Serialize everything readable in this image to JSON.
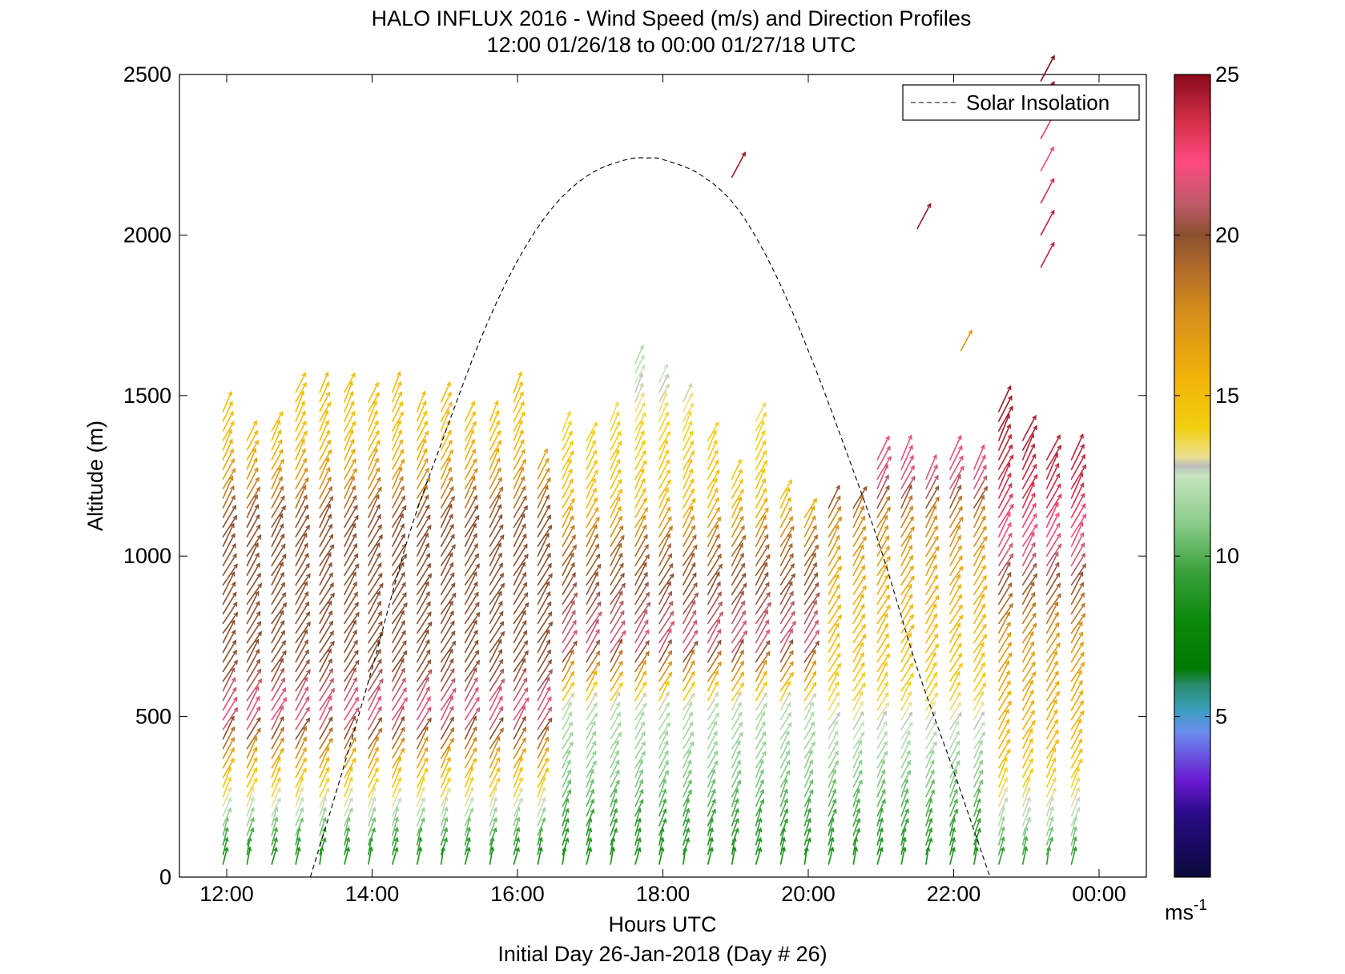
{
  "chart_data": {
    "type": "scatter",
    "title": "HALO INFLUX 2016 - Wind Speed (m/s) and Direction Profiles",
    "subtitle": "12:00 01/26/18 to 00:00 01/27/18  UTC",
    "xlabel": "Hours UTC",
    "xlabel2": "Initial Day 26-Jan-2018 (Day # 26)",
    "ylabel": "Altitude (m)",
    "xlim": [
      11.35,
      24.65
    ],
    "ylim": [
      0,
      2500
    ],
    "x_ticks": [
      12,
      14,
      16,
      18,
      20,
      22,
      24
    ],
    "x_tick_labels": [
      "12:00",
      "14:00",
      "16:00",
      "18:00",
      "20:00",
      "22:00",
      "00:00"
    ],
    "y_ticks": [
      0,
      500,
      1000,
      1500,
      2000,
      2500
    ],
    "y_tick_labels": [
      "0",
      "500",
      "1000",
      "1500",
      "2000",
      "2500"
    ],
    "legend": {
      "entries": [
        "Solar Insolation"
      ],
      "placement": "top-right",
      "line_style": "dashed"
    },
    "solar_insolation": {
      "x": [
        13.15,
        13.5,
        14.0,
        14.5,
        15.0,
        15.5,
        16.0,
        16.5,
        17.0,
        17.5,
        17.8,
        18.0,
        18.5,
        19.0,
        19.5,
        20.0,
        20.5,
        21.0,
        21.5,
        22.0,
        22.5
      ],
      "y": [
        0,
        260,
        650,
        1060,
        1380,
        1680,
        1920,
        2090,
        2190,
        2235,
        2240,
        2235,
        2190,
        2090,
        1900,
        1640,
        1340,
        1020,
        650,
        330,
        0
      ]
    },
    "colorbar": {
      "label": "ms-1",
      "label_main": "ms",
      "label_sup": "-1",
      "min": 0,
      "max": 25,
      "ticks": [
        5,
        10,
        15,
        20,
        25
      ],
      "tick_labels": [
        "5",
        "10",
        "15",
        "20",
        "25"
      ],
      "stops": [
        {
          "v": 0,
          "c": "#0a0a3a"
        },
        {
          "v": 2,
          "c": "#2a0a8a"
        },
        {
          "v": 3,
          "c": "#6a1ad0"
        },
        {
          "v": 4.5,
          "c": "#6a8aee"
        },
        {
          "v": 5.2,
          "c": "#3aa0c0"
        },
        {
          "v": 6,
          "c": "#2a8a6a"
        },
        {
          "v": 6.5,
          "c": "#007a00"
        },
        {
          "v": 8,
          "c": "#0a8a0a"
        },
        {
          "v": 9.5,
          "c": "#3aa03a"
        },
        {
          "v": 11,
          "c": "#8acc8a"
        },
        {
          "v": 12.5,
          "c": "#c6e4c0"
        },
        {
          "v": 12.8,
          "c": "#bdbdbd"
        },
        {
          "v": 13.1,
          "c": "#ece090"
        },
        {
          "v": 14,
          "c": "#f2cf10"
        },
        {
          "v": 15.5,
          "c": "#f2b40a"
        },
        {
          "v": 17.5,
          "c": "#d6901a"
        },
        {
          "v": 19,
          "c": "#b06a2a"
        },
        {
          "v": 20,
          "c": "#8a5030"
        },
        {
          "v": 21,
          "c": "#c05a6a"
        },
        {
          "v": 22.3,
          "c": "#ff4a80"
        },
        {
          "v": 23.5,
          "c": "#d6304a"
        },
        {
          "v": 25,
          "c": "#8a0a1a"
        }
      ]
    },
    "profile_times": [
      11.95,
      12.28,
      12.62,
      12.95,
      13.28,
      13.62,
      13.95,
      14.28,
      14.62,
      14.95,
      15.28,
      15.62,
      15.95,
      16.28,
      16.62,
      16.95,
      17.28,
      17.62,
      17.95,
      18.28,
      18.62,
      18.95,
      19.28,
      19.62,
      19.95,
      20.28,
      20.62,
      20.95,
      21.28,
      21.62,
      21.95,
      22.28,
      22.62,
      22.95,
      23.28,
      23.62
    ],
    "profile_tops": [
      1470,
      1360,
      1400,
      1520,
      1520,
      1520,
      1500,
      1520,
      1460,
      1500,
      1440,
      1420,
      1520,
      1280,
      1400,
      1360,
      1420,
      1620,
      1560,
      1500,
      1360,
      1260,
      1440,
      1180,
      1140,
      1160,
      1160,
      1300,
      1300,
      1260,
      1300,
      1280,
      1460,
      1360,
      1300,
      1320
    ],
    "speed_profiles": [
      {
        "x0": 11.95,
        "x1": 16.5,
        "points": [
          [
            0,
            8
          ],
          [
            80,
            9
          ],
          [
            180,
            12
          ],
          [
            330,
            16
          ],
          [
            480,
            22
          ],
          [
            620,
            20
          ],
          [
            1100,
            20
          ],
          [
            1250,
            16.5
          ],
          [
            1350,
            15
          ],
          [
            1500,
            15
          ]
        ]
      },
      {
        "x0": 16.5,
        "x1": 20.0,
        "points": [
          [
            0,
            8
          ],
          [
            120,
            9
          ],
          [
            300,
            11
          ],
          [
            500,
            12
          ],
          [
            700,
            21.5
          ],
          [
            1000,
            19
          ],
          [
            1150,
            15
          ],
          [
            1350,
            14
          ],
          [
            1600,
            12
          ]
        ]
      },
      {
        "x0": 20.0,
        "x1": 22.3,
        "points": [
          [
            0,
            8
          ],
          [
            200,
            10
          ],
          [
            400,
            12
          ],
          [
            600,
            14.5
          ],
          [
            900,
            16
          ],
          [
            1100,
            18
          ],
          [
            1200,
            21.5
          ],
          [
            1350,
            22
          ]
        ]
      },
      {
        "x0": 22.3,
        "x1": 24.0,
        "points": [
          [
            0,
            8
          ],
          [
            150,
            12
          ],
          [
            350,
            15
          ],
          [
            700,
            17
          ],
          [
            950,
            21
          ],
          [
            1150,
            23.5
          ],
          [
            1400,
            24.5
          ]
        ]
      }
    ],
    "direction_profile": [
      [
        0,
        80
      ],
      [
        150,
        70
      ],
      [
        400,
        60
      ],
      [
        800,
        58
      ],
      [
        1200,
        62
      ],
      [
        1500,
        65
      ],
      [
        2500,
        70
      ]
    ],
    "upper_barbs": [
      {
        "x": 18.95,
        "y": 2180,
        "speed": 24.5
      },
      {
        "x": 21.5,
        "y": 2020,
        "speed": 24.5
      },
      {
        "x": 22.1,
        "y": 1640,
        "speed": 17
      },
      {
        "x": 23.2,
        "y": 1900,
        "speed": 24
      },
      {
        "x": 23.2,
        "y": 2000,
        "speed": 24
      },
      {
        "x": 23.2,
        "y": 2100,
        "speed": 23.5
      },
      {
        "x": 23.2,
        "y": 2200,
        "speed": 22.5
      },
      {
        "x": 23.2,
        "y": 2300,
        "speed": 23
      },
      {
        "x": 23.2,
        "y": 2400,
        "speed": 24.5
      },
      {
        "x": 23.2,
        "y": 2480,
        "speed": 25
      }
    ]
  }
}
